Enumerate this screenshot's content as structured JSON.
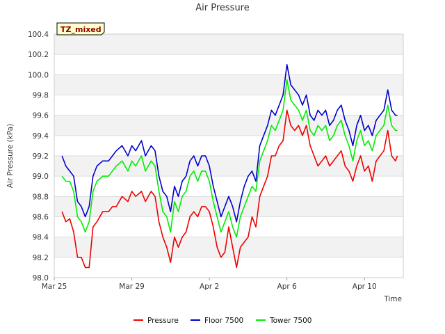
{
  "chart_data": {
    "type": "line",
    "title": "Air Pressure",
    "xlabel": "Time",
    "ylabel": "Air Pressure (kPa)",
    "badge": "TZ_mixed",
    "ylim": [
      98.0,
      100.4
    ],
    "yticks": [
      "98.0",
      "98.2",
      "98.4",
      "98.6",
      "98.8",
      "99.0",
      "99.2",
      "99.4",
      "99.6",
      "99.8",
      "100.0",
      "100.2",
      "100.4"
    ],
    "xlim": [
      0,
      18
    ],
    "xticks": [
      {
        "day": 0,
        "label": "Mar 25"
      },
      {
        "day": 4,
        "label": "Mar 29"
      },
      {
        "day": 8,
        "label": "Apr 2"
      },
      {
        "day": 12,
        "label": "Apr 6"
      },
      {
        "day": 16,
        "label": "Apr 10"
      }
    ],
    "grid": true,
    "legend": "bottom-center",
    "series": [
      {
        "name": "Pressure",
        "color": "#ee0000",
        "x": [
          0.4,
          0.6,
          0.8,
          1.0,
          1.2,
          1.4,
          1.6,
          1.8,
          2.0,
          2.2,
          2.5,
          2.8,
          3.0,
          3.2,
          3.5,
          3.8,
          4.0,
          4.2,
          4.5,
          4.7,
          5.0,
          5.2,
          5.4,
          5.6,
          5.8,
          6.0,
          6.2,
          6.4,
          6.6,
          6.8,
          7.0,
          7.2,
          7.4,
          7.6,
          7.8,
          8.0,
          8.2,
          8.4,
          8.6,
          8.8,
          9.0,
          9.2,
          9.4,
          9.6,
          9.8,
          10.0,
          10.2,
          10.4,
          10.6,
          10.8,
          11.0,
          11.2,
          11.4,
          11.6,
          11.8,
          12.0,
          12.2,
          12.4,
          12.6,
          12.8,
          13.0,
          13.2,
          13.4,
          13.6,
          13.8,
          14.0,
          14.2,
          14.4,
          14.6,
          14.8,
          15.0,
          15.2,
          15.4,
          15.6,
          15.8,
          16.0,
          16.2,
          16.4,
          16.6,
          16.8,
          17.0,
          17.2,
          17.4,
          17.6,
          17.7
        ],
        "values": [
          98.65,
          98.55,
          98.58,
          98.45,
          98.2,
          98.2,
          98.1,
          98.1,
          98.5,
          98.55,
          98.65,
          98.65,
          98.7,
          98.7,
          98.8,
          98.75,
          98.85,
          98.8,
          98.85,
          98.75,
          98.85,
          98.8,
          98.55,
          98.4,
          98.3,
          98.15,
          98.4,
          98.3,
          98.4,
          98.45,
          98.6,
          98.65,
          98.6,
          98.7,
          98.7,
          98.65,
          98.5,
          98.3,
          98.2,
          98.25,
          98.5,
          98.3,
          98.1,
          98.3,
          98.35,
          98.4,
          98.6,
          98.5,
          98.8,
          98.9,
          99.0,
          99.2,
          99.2,
          99.3,
          99.35,
          99.65,
          99.5,
          99.45,
          99.5,
          99.4,
          99.5,
          99.3,
          99.2,
          99.1,
          99.15,
          99.2,
          99.1,
          99.15,
          99.2,
          99.25,
          99.1,
          99.05,
          98.95,
          99.1,
          99.2,
          99.05,
          99.1,
          98.95,
          99.15,
          99.2,
          99.25,
          99.45,
          99.2,
          99.15,
          99.2
        ]
      },
      {
        "name": "Floor 7500",
        "color": "#0000cc",
        "x": [
          0.4,
          0.6,
          0.8,
          1.0,
          1.2,
          1.4,
          1.6,
          1.8,
          2.0,
          2.2,
          2.5,
          2.8,
          3.0,
          3.2,
          3.5,
          3.8,
          4.0,
          4.2,
          4.5,
          4.7,
          5.0,
          5.2,
          5.4,
          5.6,
          5.8,
          6.0,
          6.2,
          6.4,
          6.6,
          6.8,
          7.0,
          7.2,
          7.4,
          7.6,
          7.8,
          8.0,
          8.2,
          8.4,
          8.6,
          8.8,
          9.0,
          9.2,
          9.4,
          9.6,
          9.8,
          10.0,
          10.2,
          10.4,
          10.6,
          10.8,
          11.0,
          11.2,
          11.4,
          11.6,
          11.8,
          12.0,
          12.2,
          12.4,
          12.6,
          12.8,
          13.0,
          13.2,
          13.4,
          13.6,
          13.8,
          14.0,
          14.2,
          14.4,
          14.6,
          14.8,
          15.0,
          15.2,
          15.4,
          15.6,
          15.8,
          16.0,
          16.2,
          16.4,
          16.6,
          16.8,
          17.0,
          17.2,
          17.4,
          17.6,
          17.7
        ],
        "values": [
          99.2,
          99.1,
          99.05,
          99.0,
          98.75,
          98.7,
          98.6,
          98.7,
          99.0,
          99.1,
          99.15,
          99.15,
          99.2,
          99.25,
          99.3,
          99.2,
          99.3,
          99.25,
          99.35,
          99.2,
          99.3,
          99.25,
          99.0,
          98.85,
          98.8,
          98.65,
          98.9,
          98.8,
          98.95,
          99.0,
          99.15,
          99.2,
          99.1,
          99.2,
          99.2,
          99.1,
          98.9,
          98.75,
          98.6,
          98.7,
          98.8,
          98.7,
          98.55,
          98.75,
          98.9,
          99.0,
          99.05,
          98.95,
          99.3,
          99.4,
          99.5,
          99.65,
          99.6,
          99.7,
          99.8,
          100.1,
          99.9,
          99.85,
          99.8,
          99.7,
          99.8,
          99.6,
          99.55,
          99.65,
          99.6,
          99.65,
          99.5,
          99.55,
          99.65,
          99.7,
          99.55,
          99.45,
          99.3,
          99.5,
          99.6,
          99.45,
          99.5,
          99.4,
          99.55,
          99.6,
          99.65,
          99.85,
          99.65,
          99.6,
          99.6
        ]
      },
      {
        "name": "Tower 7500",
        "color": "#00ee00",
        "x": [
          0.4,
          0.6,
          0.8,
          1.0,
          1.2,
          1.4,
          1.6,
          1.8,
          2.0,
          2.2,
          2.5,
          2.8,
          3.0,
          3.2,
          3.5,
          3.8,
          4.0,
          4.2,
          4.5,
          4.7,
          5.0,
          5.2,
          5.4,
          5.6,
          5.8,
          6.0,
          6.2,
          6.4,
          6.6,
          6.8,
          7.0,
          7.2,
          7.4,
          7.6,
          7.8,
          8.0,
          8.2,
          8.4,
          8.6,
          8.8,
          9.0,
          9.2,
          9.4,
          9.6,
          9.8,
          10.0,
          10.2,
          10.4,
          10.6,
          10.8,
          11.0,
          11.2,
          11.4,
          11.6,
          11.8,
          12.0,
          12.2,
          12.4,
          12.6,
          12.8,
          13.0,
          13.2,
          13.4,
          13.6,
          13.8,
          14.0,
          14.2,
          14.4,
          14.6,
          14.8,
          15.0,
          15.2,
          15.4,
          15.6,
          15.8,
          16.0,
          16.2,
          16.4,
          16.6,
          16.8,
          17.0,
          17.2,
          17.4,
          17.6,
          17.7
        ],
        "values": [
          99.0,
          98.95,
          98.95,
          98.85,
          98.6,
          98.55,
          98.45,
          98.55,
          98.85,
          98.95,
          99.0,
          99.0,
          99.05,
          99.1,
          99.15,
          99.05,
          99.15,
          99.1,
          99.2,
          99.05,
          99.15,
          99.1,
          98.85,
          98.65,
          98.6,
          98.45,
          98.75,
          98.65,
          98.8,
          98.85,
          99.0,
          99.05,
          98.95,
          99.05,
          99.05,
          98.95,
          98.75,
          98.6,
          98.45,
          98.55,
          98.65,
          98.5,
          98.4,
          98.6,
          98.7,
          98.8,
          98.9,
          98.85,
          99.15,
          99.25,
          99.35,
          99.5,
          99.45,
          99.55,
          99.65,
          99.95,
          99.75,
          99.7,
          99.65,
          99.55,
          99.65,
          99.45,
          99.4,
          99.5,
          99.45,
          99.5,
          99.35,
          99.4,
          99.5,
          99.55,
          99.4,
          99.3,
          99.15,
          99.35,
          99.45,
          99.3,
          99.35,
          99.25,
          99.4,
          99.45,
          99.5,
          99.7,
          99.5,
          99.45,
          99.45
        ]
      }
    ]
  }
}
